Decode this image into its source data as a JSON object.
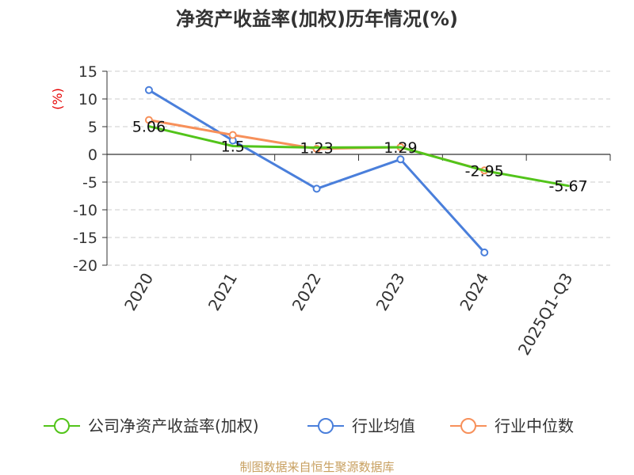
{
  "chart_data": {
    "type": "line",
    "title": "净资产收益率(加权)历年情况(%)",
    "ylabel": "(%)",
    "xlabel": "",
    "ylim": [
      -20,
      15
    ],
    "yticks": [
      15,
      10,
      5,
      0,
      -5,
      -10,
      -15,
      -20
    ],
    "categories": [
      "2020",
      "2021",
      "2022",
      "2023",
      "2024",
      "2025Q1-Q3"
    ],
    "grid": true,
    "legend_position": "bottom",
    "series": [
      {
        "name": "公司净资产收益率(加权)",
        "color": "#52c41a",
        "values": [
          5.06,
          1.5,
          1.23,
          1.29,
          -2.95,
          -5.67
        ],
        "labels": [
          "5.06",
          "1.5",
          "1.23",
          "1.29",
          "-2.95",
          "-5.67"
        ],
        "markers": false
      },
      {
        "name": "行业均值",
        "color": "#4a7fdb",
        "values": [
          11.6,
          2.5,
          -6.2,
          -0.9,
          -17.7,
          null
        ],
        "markers": true
      },
      {
        "name": "行业中位数",
        "color": "#f7905a",
        "values": [
          6.2,
          3.5,
          1.0,
          1.3,
          -2.9,
          null
        ],
        "markers": true
      }
    ]
  },
  "source": "制图数据来自恒生聚源数据库"
}
